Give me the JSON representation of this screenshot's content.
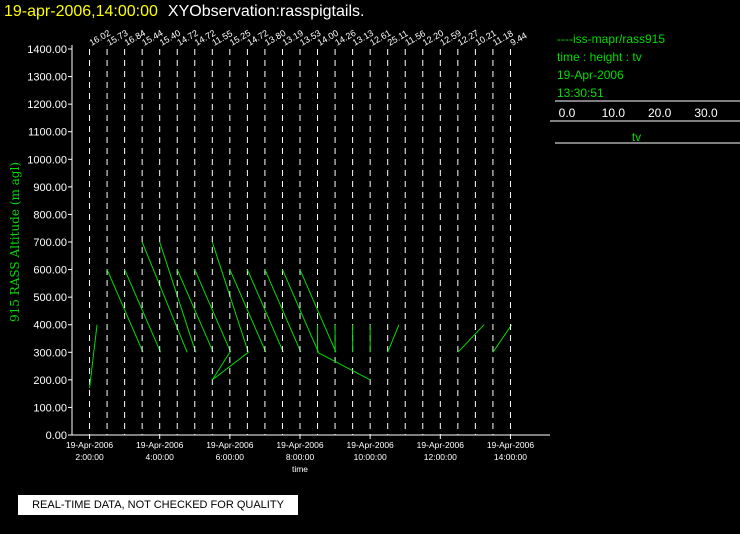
{
  "header": {
    "datetime": "19-apr-2006,14:00:00",
    "observation": "XYObservation:rasspigtails."
  },
  "legend": {
    "series_line": "----iss-mapr/rass915",
    "line2": "time : height : tv",
    "date": "19-Apr-2006",
    "time": "13:30:51",
    "scale_ticks": [
      "0.0",
      "10.0",
      "20.0",
      "30.0"
    ],
    "scale_label": "tv"
  },
  "footer": {
    "note": "REAL-TIME DATA, NOT CHECKED FOR QUALITY"
  },
  "colors": {
    "title": "#ffff00",
    "axes": "#ffffff",
    "series": "#00dd00"
  },
  "chart_data": {
    "type": "line",
    "title": "19-apr-2006,14:00:00",
    "xlabel": "time",
    "ylabel": "915 RASS Altitude (m agl)",
    "ylim": [
      0,
      1400
    ],
    "xlim_hours": [
      1.5,
      14.5
    ],
    "yticks": [
      "0.00",
      "100.00",
      "200.00",
      "300.00",
      "400.00",
      "500.00",
      "600.00",
      "700.00",
      "800.00",
      "900.00",
      "1000.00",
      "1100.00",
      "1200.00",
      "1300.00",
      "1400.00"
    ],
    "xticks": [
      {
        "hour": 2,
        "date": "19-Apr-2006",
        "time": "2:00:00"
      },
      {
        "hour": 4,
        "date": "19-Apr-2006",
        "time": "4:00:00"
      },
      {
        "hour": 6,
        "date": "19-Apr-2006",
        "time": "6:00:00"
      },
      {
        "hour": 8,
        "date": "19-Apr-2006",
        "time": "8:00:00"
      },
      {
        "hour": 10,
        "date": "19-Apr-2006",
        "time": "10:00:00"
      },
      {
        "hour": 12,
        "date": "19-Apr-2006",
        "time": "12:00:00"
      },
      {
        "hour": 14,
        "date": "19-Apr-2006",
        "time": "14:00:00"
      }
    ],
    "profiles": [
      {
        "hour": 2.0,
        "label": "16.02",
        "points": [
          [
            0.0,
            170
          ],
          [
            0.1,
            400
          ]
        ]
      },
      {
        "hour": 2.5,
        "label": "15.73",
        "points": [
          [
            0.0,
            600
          ],
          [
            0.48,
            300
          ]
        ]
      },
      {
        "hour": 3.0,
        "label": "16.84",
        "points": [
          [
            0.0,
            600
          ],
          [
            0.48,
            300
          ]
        ]
      },
      {
        "hour": 3.5,
        "label": "15.44",
        "points": [
          [
            0.0,
            700
          ],
          [
            0.6,
            300
          ]
        ]
      },
      {
        "hour": 4.0,
        "label": "15.40",
        "points": [
          [
            0.0,
            700
          ],
          [
            0.48,
            300
          ]
        ]
      },
      {
        "hour": 4.5,
        "label": "14.72",
        "points": [
          [
            0.0,
            600
          ],
          [
            0.48,
            300
          ]
        ]
      },
      {
        "hour": 5.0,
        "label": "14.72",
        "points": [
          [
            0.0,
            600
          ],
          [
            0.48,
            300
          ]
        ]
      },
      {
        "hour": 5.5,
        "label": "11.55",
        "points": [
          [
            0.0,
            700
          ],
          [
            0.48,
            300
          ],
          [
            0.48,
            300
          ],
          [
            0.0,
            200
          ]
        ]
      },
      {
        "hour": 6.0,
        "label": "15.25",
        "points": [
          [
            0.0,
            600
          ],
          [
            0.48,
            300
          ]
        ]
      },
      {
        "hour": 6.5,
        "label": "14.72",
        "points": [
          [
            0.0,
            600
          ],
          [
            0.48,
            300
          ]
        ]
      },
      {
        "hour": 7.0,
        "label": "13.80",
        "points": [
          [
            0.0,
            600
          ],
          [
            0.48,
            300
          ]
        ]
      },
      {
        "hour": 7.5,
        "label": "13.19",
        "points": [
          [
            0.0,
            600
          ],
          [
            0.48,
            300
          ]
        ]
      },
      {
        "hour": 8.0,
        "label": "13.53",
        "points": [
          [
            0.0,
            600
          ],
          [
            0.48,
            300
          ]
        ]
      },
      {
        "hour": 8.5,
        "label": "14.00",
        "points": [
          [
            0.0,
            400
          ],
          [
            0.0,
            300
          ]
        ]
      },
      {
        "hour": 9.0,
        "label": "14.26",
        "points": [
          [
            0.0,
            400
          ],
          [
            0.0,
            300
          ]
        ]
      },
      {
        "hour": 9.5,
        "label": "13.13",
        "points": [
          [
            0.0,
            400
          ],
          [
            0.0,
            300
          ]
        ]
      },
      {
        "hour": 10.0,
        "label": "12.61",
        "points": [
          [
            0.0,
            400
          ],
          [
            0.0,
            300
          ]
        ]
      },
      {
        "hour": 10.5,
        "label": "25.11",
        "points": [
          [
            0.0,
            300
          ],
          [
            0.15,
            400
          ]
        ]
      },
      {
        "hour": 11.0,
        "label": "11.56",
        "points": []
      },
      {
        "hour": 11.5,
        "label": "12.20",
        "points": []
      },
      {
        "hour": 12.0,
        "label": "12.59",
        "points": []
      },
      {
        "hour": 12.5,
        "label": "12.27",
        "points": [
          [
            0.0,
            300
          ],
          [
            0.35,
            400
          ]
        ]
      },
      {
        "hour": 13.0,
        "label": "10.21",
        "points": []
      },
      {
        "hour": 13.5,
        "label": "11.18",
        "points": [
          [
            0.0,
            300
          ],
          [
            0.25,
            400
          ]
        ]
      },
      {
        "hour": 14.0,
        "label": "9.44",
        "points": []
      }
    ],
    "links": [
      [
        [
          5.5,
          200
        ],
        [
          6.0,
          300
        ]
      ],
      [
        [
          8.5,
          300
        ],
        [
          10.0,
          200
        ]
      ]
    ]
  }
}
